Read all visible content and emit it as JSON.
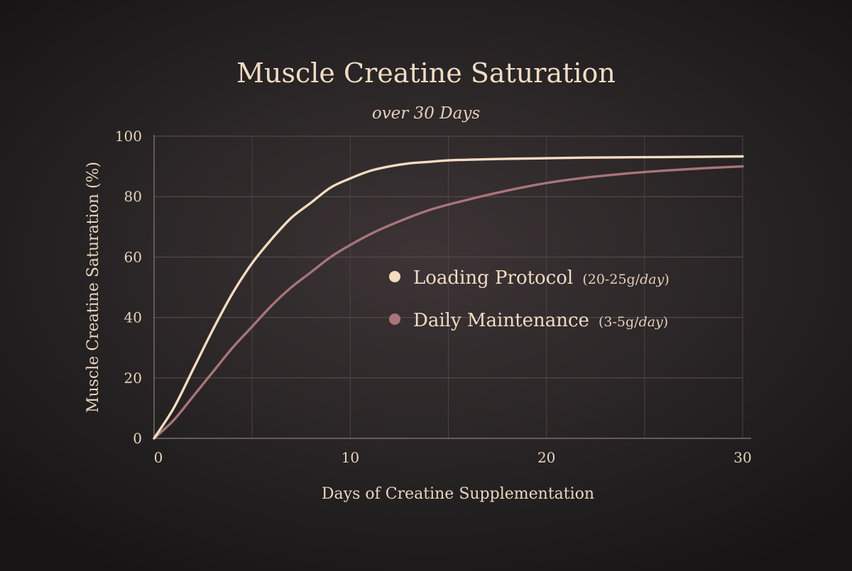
{
  "chart_data": {
    "type": "line",
    "title": "Muscle Creatine Saturation",
    "subtitle": "over 30 Days",
    "xlabel": "Days of Creatine Supplementation",
    "ylabel": "Muscle Creatine Saturation (%)",
    "xlim": [
      0,
      30
    ],
    "ylim": [
      0,
      100
    ],
    "x_ticks": [
      0,
      10,
      20,
      30
    ],
    "y_ticks": [
      0,
      20,
      40,
      60,
      80,
      100
    ],
    "grid": true,
    "legend_position": "center-right",
    "series": [
      {
        "name": "Loading Protocol",
        "detail_open": "(20-25g/",
        "detail_italic": "day",
        "detail_close": ")",
        "color": "#f3dcc0",
        "x": [
          0,
          1,
          2,
          3,
          4,
          5,
          6,
          7,
          8,
          9,
          10,
          11,
          12,
          13,
          14,
          15,
          16,
          18,
          20,
          22,
          24,
          26,
          28,
          30
        ],
        "y": [
          0,
          10,
          23,
          36,
          48,
          58,
          66,
          73,
          78,
          83,
          86,
          88.5,
          90,
          91,
          91.5,
          92,
          92.2,
          92.5,
          92.7,
          92.9,
          93,
          93.1,
          93.2,
          93.3
        ]
      },
      {
        "name": "Daily Maintenance",
        "detail_open": "(3-5g/",
        "detail_italic": "day",
        "detail_close": ")",
        "color": "#a8757a",
        "x": [
          0,
          1,
          2,
          3,
          4,
          5,
          6,
          7,
          8,
          9,
          10,
          11,
          12,
          14,
          16,
          18,
          20,
          22,
          24,
          26,
          28,
          30
        ],
        "y": [
          0,
          6,
          14,
          22,
          30,
          37,
          44,
          50,
          55,
          60,
          64,
          67.5,
          70.5,
          75.5,
          79,
          82,
          84.5,
          86.3,
          87.6,
          88.6,
          89.4,
          90
        ]
      }
    ]
  }
}
